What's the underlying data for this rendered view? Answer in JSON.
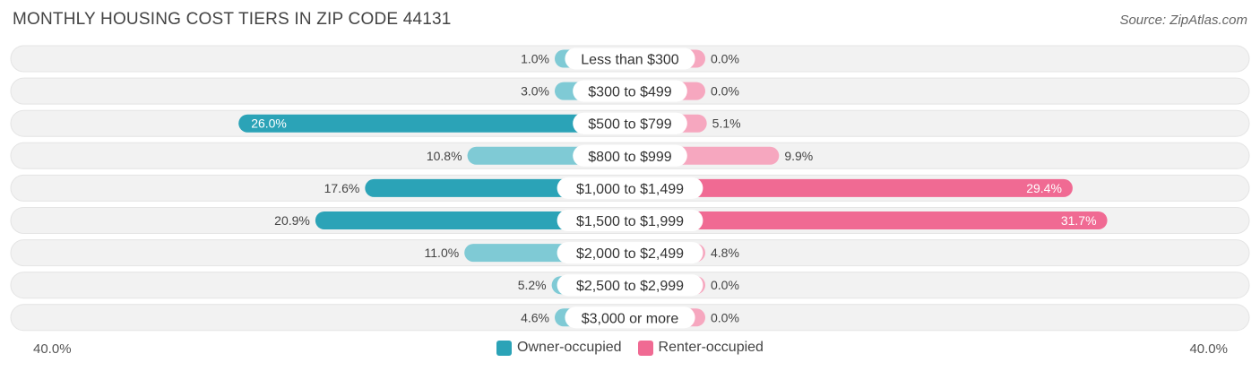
{
  "title": "MONTHLY HOUSING COST TIERS IN ZIP CODE 44131",
  "source": "Source: ZipAtlas.com",
  "colors": {
    "owner": "#2ba3b7",
    "owner_light": "#7fcad5",
    "renter": "#f06a93",
    "renter_light": "#f6a7bf",
    "row_bg": "#f2f2f2"
  },
  "chart_data": {
    "type": "bar",
    "orientation": "horizontal-diverging",
    "categories": [
      "Less than $300",
      "$300 to $499",
      "$500 to $799",
      "$800 to $999",
      "$1,000 to $1,499",
      "$1,500 to $1,999",
      "$2,000 to $2,499",
      "$2,500 to $2,999",
      "$3,000 or more"
    ],
    "series": [
      {
        "name": "Owner-occupied",
        "values": [
          1.0,
          3.0,
          26.0,
          10.8,
          17.6,
          20.9,
          11.0,
          5.2,
          4.6
        ],
        "labels": [
          "1.0%",
          "3.0%",
          "26.0%",
          "10.8%",
          "17.6%",
          "20.9%",
          "11.0%",
          "5.2%",
          "4.6%"
        ]
      },
      {
        "name": "Renter-occupied",
        "values": [
          0.0,
          0.0,
          5.1,
          9.9,
          29.4,
          31.7,
          4.8,
          0.0,
          0.0
        ],
        "labels": [
          "0.0%",
          "0.0%",
          "5.1%",
          "9.9%",
          "29.4%",
          "31.7%",
          "4.8%",
          "0.0%",
          "0.0%"
        ]
      }
    ],
    "xlim": [
      -40,
      40
    ],
    "axis_min_label": "40.0%",
    "axis_max_label": "40.0%",
    "legend_position": "bottom-center"
  }
}
